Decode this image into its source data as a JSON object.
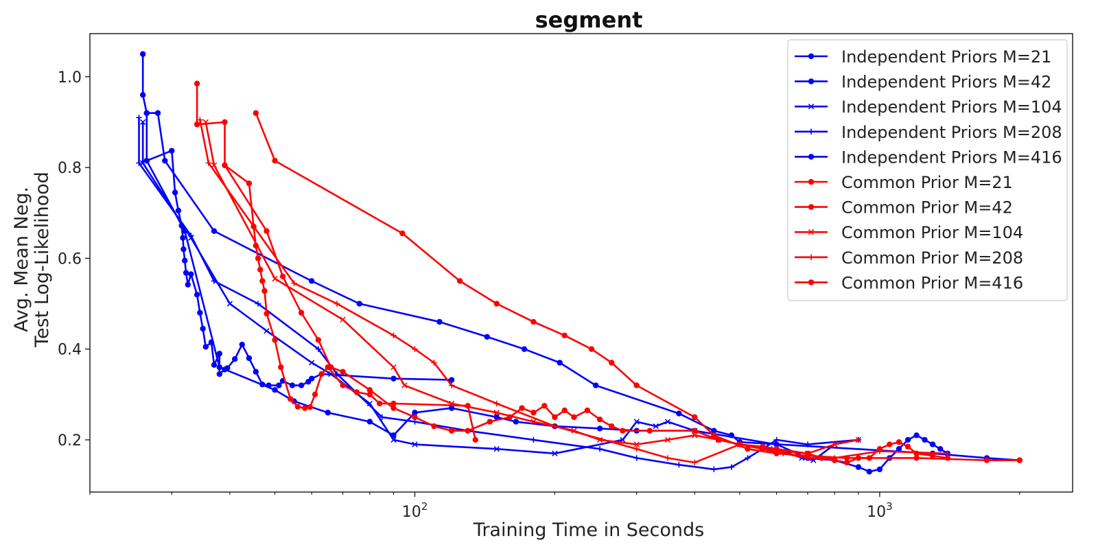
{
  "chart_data": {
    "type": "line",
    "title": "segment",
    "xlabel": "Training Time in Seconds",
    "ylabel_lines": [
      "Avg. Mean Neg.",
      "Test Log-Likelihood"
    ],
    "xscale": "log",
    "xlim": [
      20,
      2600
    ],
    "ylim": [
      0.085,
      1.095
    ],
    "xticks": [
      {
        "value": 100,
        "label": "10",
        "exp": "2"
      },
      {
        "value": 1000,
        "label": "10",
        "exp": "3"
      }
    ],
    "yticks": [
      {
        "value": 0.2,
        "label": "0.2"
      },
      {
        "value": 0.4,
        "label": "0.4"
      },
      {
        "value": 0.6,
        "label": "0.6"
      },
      {
        "value": 0.8,
        "label": "0.8"
      },
      {
        "value": 1.0,
        "label": "1.0"
      }
    ],
    "grid": false,
    "legend_position": "top-right",
    "series": [
      {
        "name": "Independent Priors M=21",
        "color": "#0000ff",
        "marker": "circle",
        "points": [
          [
            26,
            1.05
          ],
          [
            26,
            0.96
          ],
          [
            26.5,
            0.92
          ],
          [
            28,
            0.92
          ],
          [
            29,
            0.815
          ],
          [
            37,
            0.66
          ],
          [
            60,
            0.55
          ],
          [
            76,
            0.5
          ],
          [
            113,
            0.46
          ],
          [
            143,
            0.427
          ],
          [
            172,
            0.4
          ],
          [
            205,
            0.37
          ],
          [
            245,
            0.32
          ],
          [
            370,
            0.258
          ],
          [
            440,
            0.22
          ],
          [
            480,
            0.21
          ],
          [
            500,
            0.195
          ],
          [
            1300,
            0.17
          ],
          [
            1700,
            0.16
          ],
          [
            2000,
            0.155
          ]
        ]
      },
      {
        "name": "Independent Priors M=42",
        "color": "#0000ff",
        "marker": "circle",
        "points": [
          [
            26.5,
            0.92
          ],
          [
            26.5,
            0.815
          ],
          [
            30,
            0.837
          ],
          [
            30.5,
            0.745
          ],
          [
            31,
            0.705
          ],
          [
            31.5,
            0.672
          ],
          [
            31.7,
            0.645
          ],
          [
            31.8,
            0.62
          ],
          [
            32,
            0.595
          ],
          [
            32.2,
            0.568
          ],
          [
            32.5,
            0.542
          ],
          [
            33,
            0.565
          ],
          [
            34,
            0.52
          ],
          [
            34.5,
            0.48
          ],
          [
            35,
            0.445
          ],
          [
            35.5,
            0.405
          ],
          [
            36.5,
            0.415
          ],
          [
            37,
            0.365
          ],
          [
            38,
            0.39
          ],
          [
            38,
            0.345
          ],
          [
            39,
            0.355
          ],
          [
            39.5,
            0.358
          ],
          [
            41,
            0.378
          ],
          [
            42.5,
            0.41
          ],
          [
            44,
            0.38
          ],
          [
            45.5,
            0.35
          ],
          [
            47,
            0.322
          ],
          [
            48.5,
            0.32
          ],
          [
            51,
            0.32
          ],
          [
            52,
            0.33
          ],
          [
            54.5,
            0.32
          ],
          [
            57,
            0.32
          ],
          [
            59,
            0.328
          ],
          [
            60,
            0.335
          ],
          [
            63,
            0.345
          ],
          [
            90,
            0.335
          ],
          [
            120,
            0.332
          ]
        ]
      },
      {
        "name": "Independent Priors M=104",
        "color": "#0000ff",
        "marker": "x",
        "points": [
          [
            26,
            0.9
          ],
          [
            26,
            0.81
          ],
          [
            33,
            0.645
          ],
          [
            40,
            0.5
          ],
          [
            48,
            0.44
          ],
          [
            60,
            0.37
          ],
          [
            66,
            0.345
          ],
          [
            80,
            0.28
          ],
          [
            90,
            0.2
          ],
          [
            100,
            0.19
          ],
          [
            150,
            0.18
          ],
          [
            200,
            0.17
          ],
          [
            280,
            0.2
          ],
          [
            300,
            0.24
          ],
          [
            330,
            0.23
          ],
          [
            350,
            0.24
          ],
          [
            400,
            0.22
          ],
          [
            450,
            0.2
          ],
          [
            500,
            0.19
          ],
          [
            580,
            0.18
          ],
          [
            620,
            0.175
          ],
          [
            680,
            0.16
          ],
          [
            720,
            0.155
          ],
          [
            800,
            0.19
          ],
          [
            900,
            0.2
          ]
        ]
      },
      {
        "name": "Independent Priors M=208",
        "color": "#0000ff",
        "marker": "plus",
        "points": [
          [
            25.5,
            0.91
          ],
          [
            25.5,
            0.81
          ],
          [
            33,
            0.65
          ],
          [
            37,
            0.55
          ],
          [
            46,
            0.5
          ],
          [
            62,
            0.4
          ],
          [
            68,
            0.345
          ],
          [
            85,
            0.25
          ],
          [
            100,
            0.24
          ],
          [
            130,
            0.22
          ],
          [
            180,
            0.2
          ],
          [
            250,
            0.18
          ],
          [
            300,
            0.16
          ],
          [
            370,
            0.145
          ],
          [
            440,
            0.135
          ],
          [
            480,
            0.14
          ],
          [
            520,
            0.16
          ],
          [
            560,
            0.18
          ],
          [
            600,
            0.2
          ],
          [
            700,
            0.19
          ],
          [
            900,
            0.2
          ]
        ]
      },
      {
        "name": "Independent Priors M=416",
        "color": "#0000ff",
        "marker": "circle",
        "points": [
          [
            26.5,
            0.815
          ],
          [
            32,
            0.66
          ],
          [
            38,
            0.36
          ],
          [
            50,
            0.31
          ],
          [
            55,
            0.285
          ],
          [
            65,
            0.26
          ],
          [
            80,
            0.24
          ],
          [
            90,
            0.21
          ],
          [
            100,
            0.26
          ],
          [
            120,
            0.27
          ],
          [
            150,
            0.25
          ],
          [
            165,
            0.24
          ],
          [
            200,
            0.23
          ],
          [
            250,
            0.225
          ],
          [
            300,
            0.22
          ],
          [
            400,
            0.22
          ],
          [
            600,
            0.19
          ],
          [
            700,
            0.16
          ],
          [
            800,
            0.155
          ],
          [
            900,
            0.14
          ],
          [
            950,
            0.13
          ],
          [
            1000,
            0.135
          ],
          [
            1050,
            0.16
          ],
          [
            1100,
            0.18
          ],
          [
            1150,
            0.2
          ],
          [
            1200,
            0.21
          ],
          [
            1250,
            0.2
          ],
          [
            1300,
            0.19
          ],
          [
            1350,
            0.18
          ],
          [
            1400,
            0.17
          ]
        ]
      },
      {
        "name": "Common Prior M=21",
        "color": "#ff0000",
        "marker": "circle",
        "points": [
          [
            45.5,
            0.92
          ],
          [
            50,
            0.815
          ],
          [
            94,
            0.655
          ],
          [
            125,
            0.55
          ],
          [
            150,
            0.5
          ],
          [
            180,
            0.46
          ],
          [
            210,
            0.43
          ],
          [
            240,
            0.4
          ],
          [
            265,
            0.37
          ],
          [
            300,
            0.32
          ],
          [
            400,
            0.25
          ],
          [
            440,
            0.21
          ],
          [
            520,
            0.18
          ],
          [
            600,
            0.17
          ],
          [
            700,
            0.165
          ],
          [
            850,
            0.16
          ],
          [
            1200,
            0.16
          ],
          [
            1700,
            0.155
          ],
          [
            2000,
            0.155
          ]
        ]
      },
      {
        "name": "Common Prior M=42",
        "color": "#ff0000",
        "marker": "circle",
        "points": [
          [
            34,
            0.985
          ],
          [
            34,
            0.895
          ],
          [
            39,
            0.9
          ],
          [
            39,
            0.805
          ],
          [
            44,
            0.765
          ],
          [
            45,
            0.67
          ],
          [
            45.5,
            0.628
          ],
          [
            46,
            0.6
          ],
          [
            46.5,
            0.575
          ],
          [
            47,
            0.55
          ],
          [
            47.5,
            0.528
          ],
          [
            48,
            0.478
          ],
          [
            50,
            0.42
          ],
          [
            51.5,
            0.36
          ],
          [
            54,
            0.29
          ],
          [
            56,
            0.273
          ],
          [
            58,
            0.27
          ],
          [
            59.5,
            0.272
          ],
          [
            61,
            0.3
          ],
          [
            63,
            0.345
          ],
          [
            65,
            0.36
          ],
          [
            70,
            0.32
          ],
          [
            75,
            0.305
          ],
          [
            80,
            0.3
          ],
          [
            84,
            0.28
          ],
          [
            90,
            0.28
          ],
          [
            130,
            0.275
          ],
          [
            135,
            0.2
          ]
        ]
      },
      {
        "name": "Common Prior M=104",
        "color": "#ff0000",
        "marker": "x",
        "points": [
          [
            35.5,
            0.9
          ],
          [
            37,
            0.805
          ],
          [
            50,
            0.555
          ],
          [
            70,
            0.465
          ],
          [
            90,
            0.36
          ],
          [
            95,
            0.32
          ],
          [
            120,
            0.28
          ],
          [
            150,
            0.26
          ],
          [
            180,
            0.24
          ],
          [
            220,
            0.22
          ],
          [
            250,
            0.2
          ],
          [
            300,
            0.19
          ],
          [
            350,
            0.2
          ],
          [
            400,
            0.21
          ],
          [
            450,
            0.2
          ],
          [
            500,
            0.19
          ],
          [
            560,
            0.18
          ],
          [
            620,
            0.175
          ],
          [
            700,
            0.17
          ],
          [
            800,
            0.19
          ],
          [
            900,
            0.2
          ]
        ]
      },
      {
        "name": "Common Prior M=208",
        "color": "#ff0000",
        "marker": "plus",
        "points": [
          [
            34.5,
            0.905
          ],
          [
            36,
            0.81
          ],
          [
            55,
            0.545
          ],
          [
            68,
            0.5
          ],
          [
            90,
            0.43
          ],
          [
            100,
            0.4
          ],
          [
            110,
            0.37
          ],
          [
            120,
            0.32
          ],
          [
            150,
            0.28
          ],
          [
            200,
            0.23
          ],
          [
            300,
            0.18
          ],
          [
            350,
            0.16
          ],
          [
            400,
            0.15
          ],
          [
            500,
            0.19
          ],
          [
            560,
            0.18
          ],
          [
            620,
            0.17
          ],
          [
            700,
            0.16
          ],
          [
            800,
            0.16
          ],
          [
            1000,
            0.175
          ],
          [
            1400,
            0.17
          ]
        ]
      },
      {
        "name": "Common Prior M=416",
        "color": "#ff0000",
        "marker": "circle",
        "points": [
          [
            39,
            0.805
          ],
          [
            48,
            0.66
          ],
          [
            52,
            0.56
          ],
          [
            57,
            0.48
          ],
          [
            62,
            0.42
          ],
          [
            66,
            0.36
          ],
          [
            70,
            0.35
          ],
          [
            80,
            0.31
          ],
          [
            90,
            0.27
          ],
          [
            100,
            0.25
          ],
          [
            110,
            0.23
          ],
          [
            120,
            0.22
          ],
          [
            130,
            0.22
          ],
          [
            145,
            0.24
          ],
          [
            160,
            0.25
          ],
          [
            170,
            0.27
          ],
          [
            180,
            0.26
          ],
          [
            190,
            0.275
          ],
          [
            200,
            0.25
          ],
          [
            210,
            0.265
          ],
          [
            220,
            0.25
          ],
          [
            235,
            0.265
          ],
          [
            250,
            0.245
          ],
          [
            265,
            0.23
          ],
          [
            280,
            0.22
          ],
          [
            320,
            0.22
          ],
          [
            400,
            0.22
          ],
          [
            450,
            0.2
          ],
          [
            500,
            0.19
          ],
          [
            560,
            0.185
          ],
          [
            600,
            0.18
          ],
          [
            700,
            0.17
          ],
          [
            750,
            0.16
          ],
          [
            800,
            0.155
          ],
          [
            850,
            0.15
          ],
          [
            900,
            0.16
          ],
          [
            950,
            0.16
          ],
          [
            1000,
            0.18
          ],
          [
            1050,
            0.19
          ],
          [
            1100,
            0.195
          ],
          [
            1150,
            0.185
          ],
          [
            1200,
            0.17
          ],
          [
            1300,
            0.165
          ],
          [
            1400,
            0.16
          ]
        ]
      }
    ]
  }
}
